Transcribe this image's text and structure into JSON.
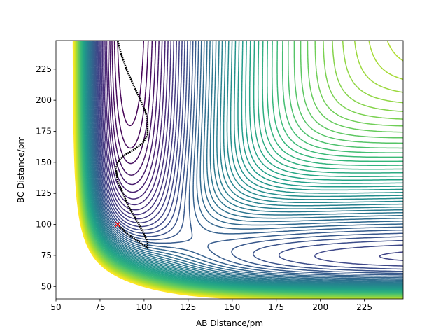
{
  "chart_data": {
    "type": "contour",
    "xlabel": "AB Distance/pm",
    "ylabel": "BC Distance/pm",
    "xlim": [
      50,
      247
    ],
    "ylim": [
      40,
      248
    ],
    "xticks": [
      50,
      75,
      100,
      125,
      150,
      175,
      200,
      225
    ],
    "yticks": [
      50,
      75,
      100,
      125,
      150,
      175,
      200,
      225
    ],
    "levels": [
      -570,
      -560,
      -550,
      -540,
      -530,
      -520,
      -510,
      -500,
      -490,
      -480,
      -470,
      -460,
      -450,
      -440,
      -430,
      -420,
      -410,
      -400,
      -390,
      -380,
      -370,
      -360,
      -350,
      -340,
      -330,
      -320,
      -310,
      -300,
      -290,
      -280,
      -270,
      -260,
      -250,
      -240,
      -230,
      -220,
      -210,
      -200,
      -190,
      -180,
      -170,
      -160,
      -150,
      -140,
      -130,
      -120,
      -110,
      -100,
      -90,
      -80,
      -70,
      -60,
      -50,
      -40,
      -30,
      -20,
      -10,
      0,
      10,
      20
    ],
    "colormap": [
      "#440154",
      "#482878",
      "#3e4989",
      "#31688e",
      "#26828e",
      "#1f9e89",
      "#35b779",
      "#6ece58",
      "#b5de2b",
      "#fde725"
    ],
    "trajectory": {
      "color": "#000000",
      "x": [
        85,
        90,
        96,
        100,
        102,
        102,
        99,
        95,
        91,
        88,
        85,
        84,
        85,
        88,
        94,
        99,
        102,
        102,
        101,
        98,
        94,
        90,
        87,
        85
      ],
      "y": [
        100,
        93,
        87,
        83,
        81,
        86,
        95,
        105,
        115,
        125,
        135,
        145,
        150,
        155,
        160,
        165,
        172,
        182,
        190,
        200,
        212,
        225,
        237,
        248
      ]
    },
    "start": {
      "x": 85,
      "y": 100,
      "color": "#ff0000"
    }
  }
}
